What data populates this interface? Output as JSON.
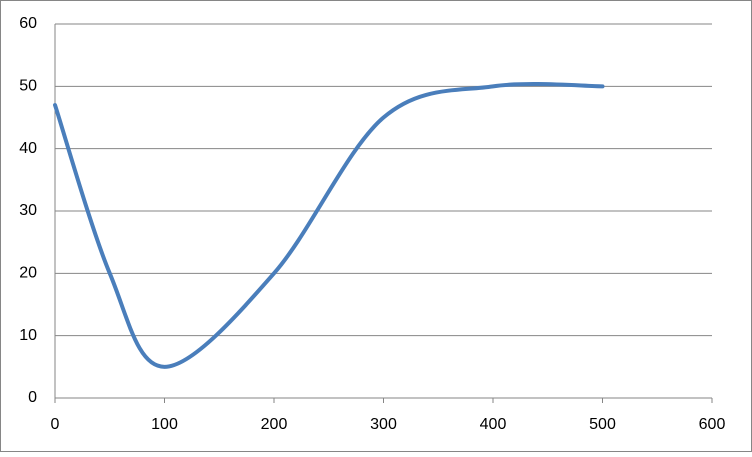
{
  "chart_data": {
    "type": "line",
    "x": [
      0,
      50,
      100,
      200,
      300,
      400,
      500
    ],
    "series": [
      {
        "color": "#4a7ebb",
        "values": [
          47,
          20,
          5,
          20,
          45,
          50,
          50
        ]
      }
    ],
    "xlim": [
      0,
      600
    ],
    "xticks": [
      0,
      100,
      200,
      300,
      400,
      500,
      600
    ],
    "ylim": [
      0,
      60
    ],
    "yticks": [
      0,
      10,
      20,
      30,
      40,
      50,
      60
    ],
    "grid": true,
    "smooth": true
  }
}
